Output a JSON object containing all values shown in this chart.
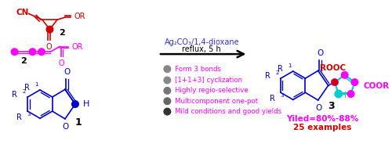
{
  "bg_color": "#ffffff",
  "reagent_line1": "Ag₂CO₃/1,4-dioxane",
  "reagent_line2": "reflux, 5 h",
  "reagent_color": "#3333cc",
  "bullet_points": [
    "Form 3 bonds",
    "[1+1+3] cyclization",
    "Highly regio-selective",
    "Multicomponent one-pot",
    "Mild conditions and good yields"
  ],
  "bullet_color": "#ff00ff",
  "bullet_grays": [
    "#888888",
    "#888888",
    "#777777",
    "#666666",
    "#444444"
  ],
  "yield_text": "Yiled=80%-88%",
  "examples_text": "25 examples",
  "yield_color": "#ff00ff",
  "examples_color": "#cc0000",
  "chromone_color": "#0000cc",
  "red_color": "#cc0000",
  "magenta_color": "#ff00ff",
  "cyan_color": "#00cccc",
  "black": "#000000",
  "figsize": [
    5.0,
    1.84
  ],
  "dpi": 100
}
